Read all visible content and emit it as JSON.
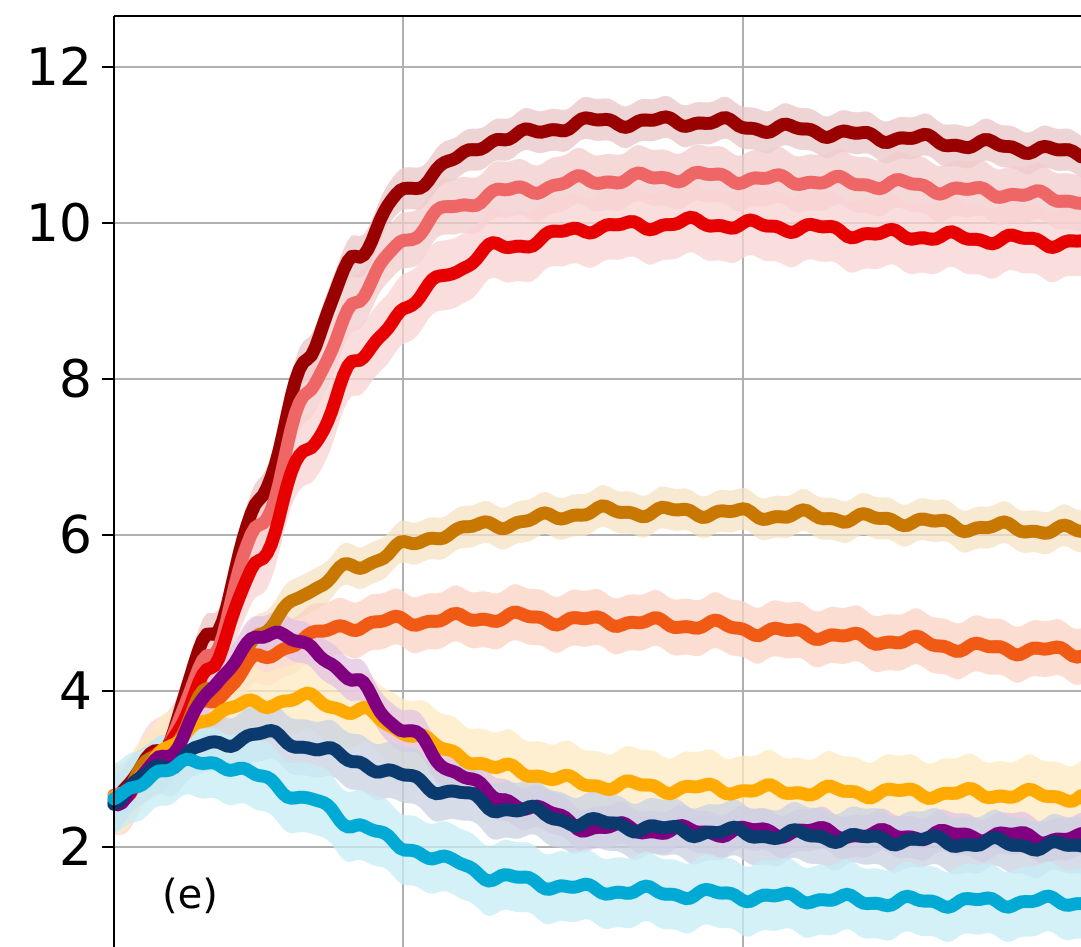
{
  "chart_data": {
    "type": "line",
    "panel_label": "(e)",
    "title": "",
    "xlabel": "",
    "ylabel": "",
    "x_range": [
      0,
      1
    ],
    "ylim": [
      0.8,
      12.6
    ],
    "yticks": [
      "2",
      "4",
      "6",
      "8",
      "10",
      "12"
    ],
    "grid": true,
    "series": [
      {
        "color": "#990000",
        "band": "#e8c6c6",
        "x": [
          0,
          0.05,
          0.1,
          0.15,
          0.2,
          0.25,
          0.3,
          0.35,
          0.4,
          0.5,
          0.6,
          0.7,
          0.8,
          0.9,
          1.0
        ],
        "y": [
          2.6,
          3.3,
          4.7,
          6.4,
          8.3,
          9.6,
          10.4,
          10.8,
          11.1,
          11.3,
          11.3,
          11.2,
          11.1,
          11.0,
          10.9
        ]
      },
      {
        "color": "#ee6666",
        "band": "#f2cccc",
        "x": [
          0,
          0.05,
          0.1,
          0.15,
          0.2,
          0.25,
          0.3,
          0.35,
          0.4,
          0.5,
          0.6,
          0.7,
          0.8,
          0.9,
          1.0
        ],
        "y": [
          2.6,
          3.2,
          4.5,
          6.1,
          7.8,
          9.0,
          9.8,
          10.2,
          10.4,
          10.55,
          10.6,
          10.55,
          10.5,
          10.4,
          10.3
        ]
      },
      {
        "color": "#e60000",
        "band": "#f8d2d2",
        "x": [
          0,
          0.05,
          0.1,
          0.15,
          0.2,
          0.25,
          0.3,
          0.35,
          0.4,
          0.5,
          0.6,
          0.7,
          0.8,
          0.9,
          1.0
        ],
        "y": [
          2.6,
          3.2,
          4.3,
          5.7,
          7.1,
          8.2,
          8.9,
          9.4,
          9.7,
          9.95,
          10.0,
          9.95,
          9.85,
          9.8,
          9.75
        ]
      },
      {
        "color": "#c87800",
        "band": "#f5e2c4",
        "x": [
          0,
          0.05,
          0.1,
          0.15,
          0.2,
          0.25,
          0.3,
          0.35,
          0.4,
          0.5,
          0.6,
          0.7,
          0.8,
          0.9,
          1.0
        ],
        "y": [
          2.6,
          3.2,
          4.0,
          4.7,
          5.3,
          5.6,
          5.85,
          6.05,
          6.15,
          6.3,
          6.3,
          6.25,
          6.2,
          6.1,
          6.05
        ]
      },
      {
        "color": "#f05a14",
        "band": "#fad2c2",
        "x": [
          0,
          0.05,
          0.1,
          0.15,
          0.2,
          0.25,
          0.3,
          0.35,
          0.4,
          0.5,
          0.6,
          0.7,
          0.8,
          0.9,
          1.0
        ],
        "y": [
          2.6,
          3.1,
          3.9,
          4.4,
          4.7,
          4.85,
          4.9,
          4.92,
          4.95,
          4.9,
          4.85,
          4.75,
          4.65,
          4.55,
          4.5
        ]
      },
      {
        "color": "#ffaa00",
        "band": "#fde9c2",
        "x": [
          0,
          0.05,
          0.1,
          0.15,
          0.2,
          0.25,
          0.3,
          0.35,
          0.4,
          0.5,
          0.6,
          0.7,
          0.8,
          0.9,
          1.0
        ],
        "y": [
          2.6,
          3.2,
          3.7,
          3.85,
          3.9,
          3.75,
          3.5,
          3.2,
          3.0,
          2.8,
          2.75,
          2.72,
          2.7,
          2.68,
          2.65
        ]
      },
      {
        "color": "#800080",
        "band": "#e2c2e2",
        "x": [
          0,
          0.05,
          0.1,
          0.15,
          0.2,
          0.25,
          0.3,
          0.35,
          0.4,
          0.5,
          0.6,
          0.7,
          0.8,
          0.9,
          1.0
        ],
        "y": [
          2.6,
          3.1,
          4.0,
          4.75,
          4.6,
          4.1,
          3.5,
          3.0,
          2.6,
          2.25,
          2.2,
          2.2,
          2.15,
          2.15,
          2.1
        ]
      },
      {
        "color": "#0a3a6e",
        "band": "#c8d2e2",
        "x": [
          0,
          0.05,
          0.1,
          0.15,
          0.2,
          0.25,
          0.3,
          0.35,
          0.4,
          0.5,
          0.6,
          0.7,
          0.8,
          0.9,
          1.0
        ],
        "y": [
          2.6,
          3.05,
          3.3,
          3.45,
          3.3,
          3.1,
          2.9,
          2.7,
          2.5,
          2.3,
          2.2,
          2.15,
          2.1,
          2.05,
          2.0
        ]
      },
      {
        "color": "#00aad4",
        "band": "#c6ecf6",
        "x": [
          0,
          0.05,
          0.1,
          0.15,
          0.2,
          0.25,
          0.3,
          0.35,
          0.4,
          0.5,
          0.6,
          0.7,
          0.8,
          0.9,
          1.0
        ],
        "y": [
          2.6,
          3.0,
          3.1,
          2.9,
          2.6,
          2.3,
          2.0,
          1.8,
          1.6,
          1.45,
          1.4,
          1.35,
          1.3,
          1.3,
          1.3
        ]
      }
    ]
  }
}
